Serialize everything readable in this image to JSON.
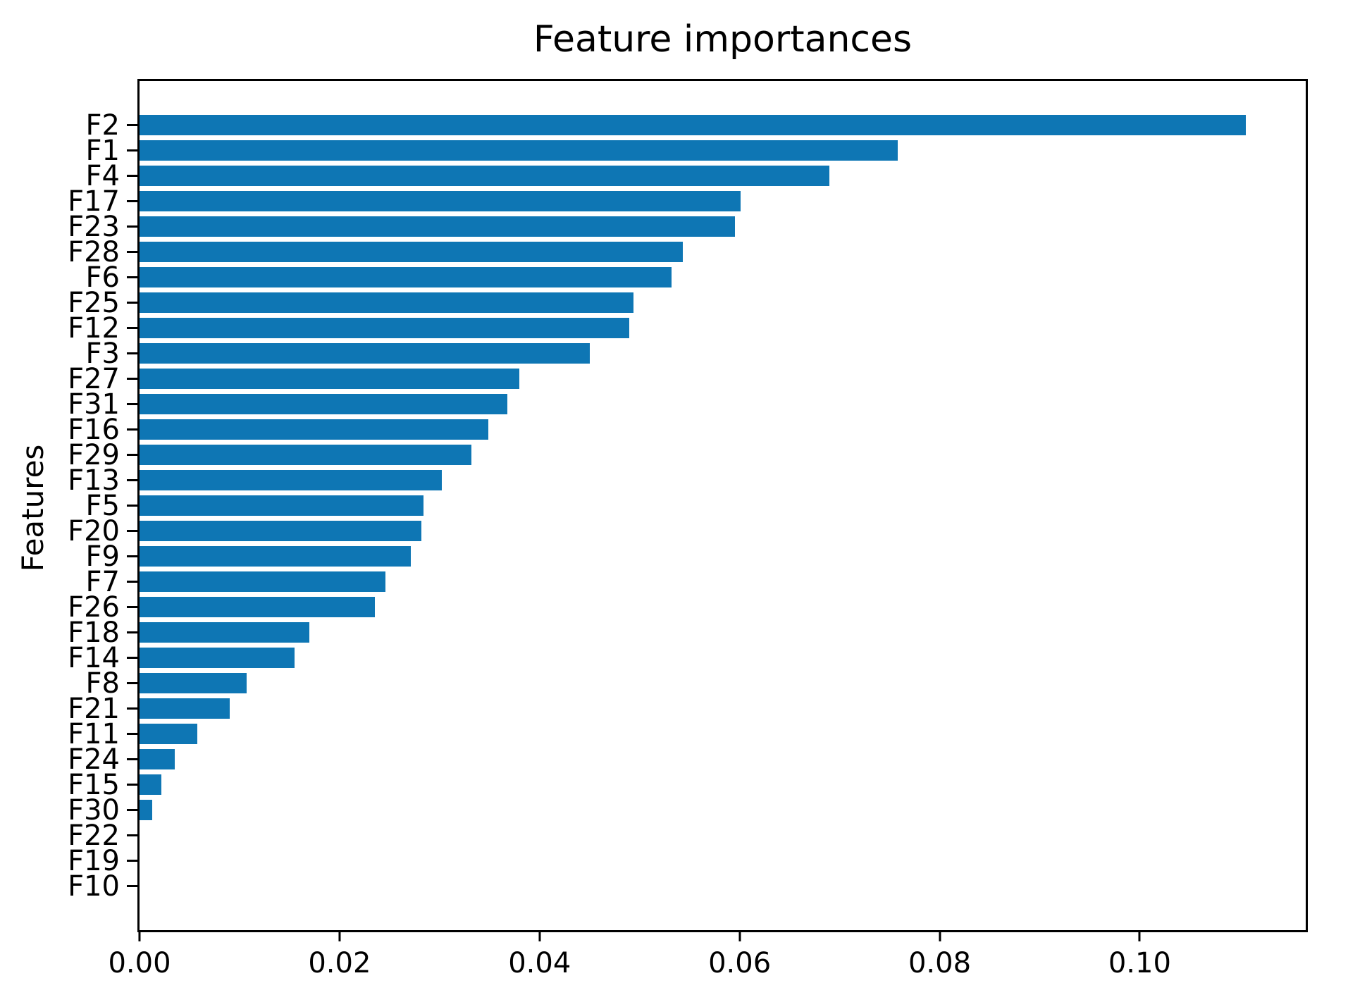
{
  "figure": {
    "background": "#ffffff",
    "bar_color": "#0e76b4",
    "spine_color": "#000000",
    "text_color": "#000000"
  },
  "chart_data": {
    "type": "bar",
    "orientation": "horizontal",
    "title": "Feature importances",
    "xlabel": "",
    "ylabel": "Features",
    "grid": false,
    "legend": null,
    "categories": [
      "F2",
      "F1",
      "F4",
      "F17",
      "F23",
      "F28",
      "F6",
      "F25",
      "F12",
      "F3",
      "F27",
      "F31",
      "F16",
      "F29",
      "F13",
      "F5",
      "F20",
      "F9",
      "F7",
      "F26",
      "F18",
      "F14",
      "F8",
      "F21",
      "F11",
      "F24",
      "F15",
      "F30",
      "F22",
      "F19",
      "F10"
    ],
    "values": [
      0.1106,
      0.0758,
      0.069,
      0.0601,
      0.0595,
      0.0543,
      0.0532,
      0.0494,
      0.049,
      0.045,
      0.038,
      0.0368,
      0.0349,
      0.0332,
      0.0302,
      0.0284,
      0.0282,
      0.0271,
      0.0246,
      0.0235,
      0.017,
      0.0155,
      0.0107,
      0.009,
      0.0058,
      0.0035,
      0.0022,
      0.0013,
      0.0,
      0.0,
      0.0
    ],
    "xlim": [
      0,
      0.1166
    ],
    "xticks": [
      0.0,
      0.02,
      0.04,
      0.06,
      0.08,
      0.1
    ],
    "xtick_labels": [
      "0.00",
      "0.02",
      "0.04",
      "0.06",
      "0.08",
      "0.10"
    ]
  }
}
